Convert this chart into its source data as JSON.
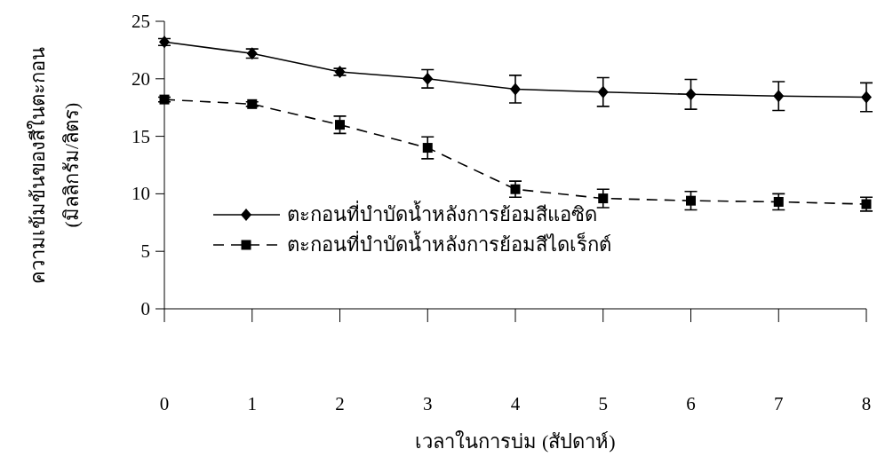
{
  "chart_data": {
    "type": "line",
    "xlabel": "เวลาในการบ่ม (สัปดาห์)",
    "ylabel": "ความเข้มข้นของสีในตะกอน\n(มิลลิกรัม/ลิตร)",
    "x": [
      0,
      1,
      2,
      3,
      4,
      5,
      6,
      7,
      8
    ],
    "series": [
      {
        "name": "ตะกอนที่บำบัดน้ำหลังการย้อมสีแอซิด",
        "color": "#000000",
        "marker": "diamond",
        "line_style": "solid",
        "values": [
          23.2,
          22.2,
          20.6,
          20.0,
          19.1,
          18.85,
          18.65,
          18.5,
          18.4
        ],
        "errors": [
          0.3,
          0.4,
          0.3,
          0.8,
          1.2,
          1.25,
          1.3,
          1.25,
          1.25
        ]
      },
      {
        "name": "ตะกอนที่บำบัดน้ำหลังการย้อมสีไดเร็กต์",
        "color": "#000000",
        "marker": "square",
        "line_style": "dashed",
        "values": [
          18.2,
          17.8,
          16.0,
          14.0,
          10.4,
          9.6,
          9.4,
          9.3,
          9.1
        ],
        "errors": [
          0.2,
          0.2,
          0.75,
          0.95,
          0.7,
          0.8,
          0.8,
          0.7,
          0.6
        ]
      }
    ],
    "xlim": [
      0,
      8
    ],
    "ylim": [
      0,
      25
    ],
    "xticks": [
      0,
      1,
      2,
      3,
      4,
      5,
      6,
      7,
      8
    ],
    "yticks": [
      0,
      5,
      10,
      15,
      20,
      25
    ],
    "grid": false,
    "legend": "bottom left"
  }
}
